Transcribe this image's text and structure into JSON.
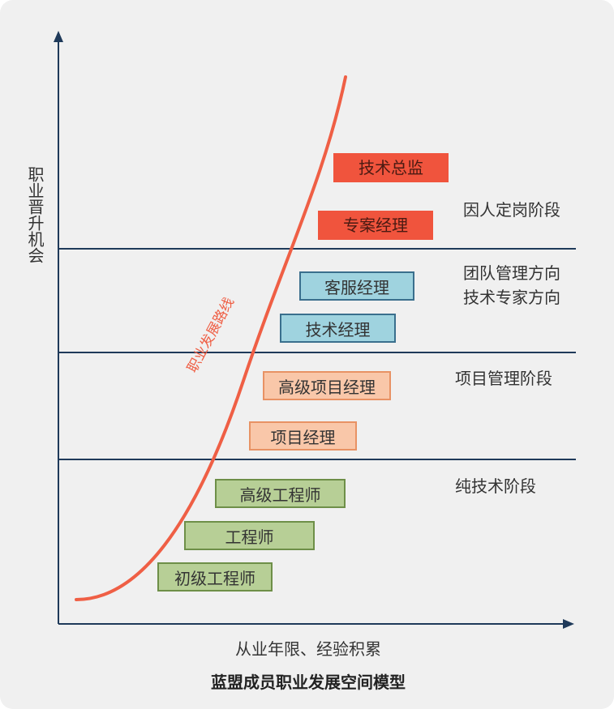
{
  "axes": {
    "y_label": "职业晋升机会",
    "x_label": "从业年限、经验积累"
  },
  "caption": "蓝盟成员职业发展空间模型",
  "path_label": "职业发展路线",
  "levels": [
    {
      "label": "技术总监",
      "stage": "因人定岗阶段"
    },
    {
      "label": "专案经理",
      "stage": "因人定岗阶段"
    },
    {
      "label": "客服经理",
      "stage": "团队管理方向 技术专家方向"
    },
    {
      "label": "技术经理",
      "stage": "团队管理方向 技术专家方向"
    },
    {
      "label": "高级项目经理",
      "stage": "项目管理阶段"
    },
    {
      "label": "项目经理",
      "stage": "项目管理阶段"
    },
    {
      "label": "高级工程师",
      "stage": "纯技术阶段"
    },
    {
      "label": "工程师",
      "stage": "纯技术阶段"
    },
    {
      "label": "初级工程师",
      "stage": "纯技术阶段"
    }
  ],
  "stages": [
    {
      "lines": [
        "因人定岗阶段"
      ]
    },
    {
      "lines": [
        "团队管理方向",
        "技术专家方向"
      ]
    },
    {
      "lines": [
        "项目管理阶段"
      ]
    },
    {
      "lines": [
        "纯技术阶段"
      ]
    }
  ],
  "colors": {
    "curve": "#ef5f45",
    "axis": "#1f3a5a",
    "red": "#f0543d",
    "blue": "#9fd3df",
    "peach": "#f9c7a9",
    "green": "#b7cf96"
  }
}
